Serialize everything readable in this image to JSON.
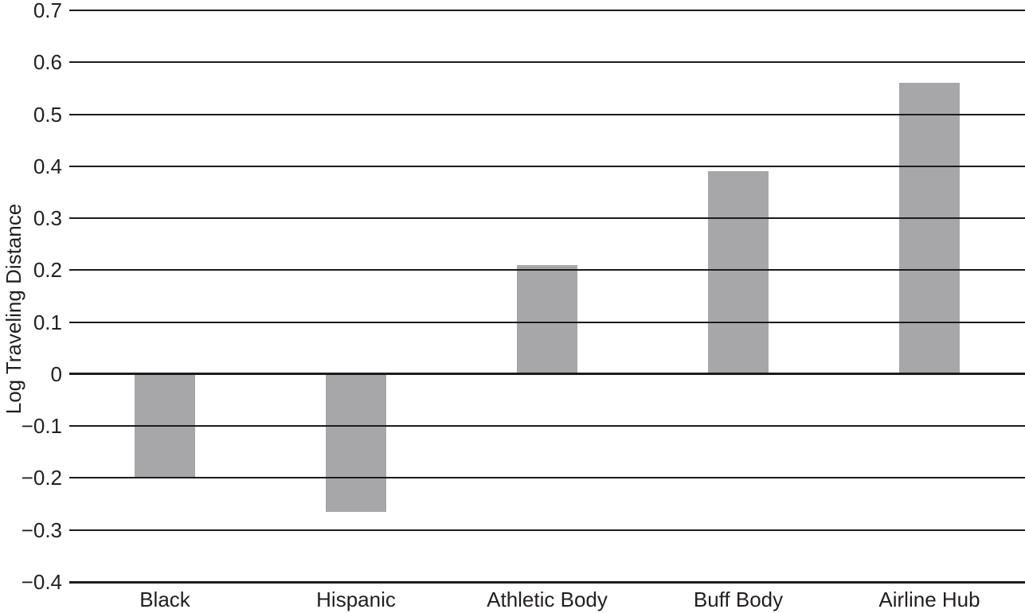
{
  "chart_data": {
    "type": "bar",
    "title": "",
    "xlabel": "",
    "ylabel": "Log Traveling Distance",
    "categories": [
      "Black",
      "Hispanic",
      "Athletic Body",
      "Buff Body",
      "Airline Hub"
    ],
    "values": [
      -0.2,
      -0.265,
      0.21,
      0.39,
      0.56
    ],
    "ylim": [
      -0.4,
      0.7
    ],
    "ytick_step": 0.1,
    "yticks": [
      0.7,
      0.6,
      0.5,
      0.4,
      0.3,
      0.2,
      0.1,
      0,
      -0.1,
      -0.2,
      -0.3,
      -0.4
    ],
    "ytick_labels": [
      "0.7",
      "0.6",
      "0.5",
      "0.4",
      "0.3",
      "0.2",
      "0.1",
      "0",
      "−0.1",
      "−0.2",
      "−0.3",
      "−0.4"
    ],
    "grid": true,
    "legend": false,
    "bar_color": "#a7a7aa",
    "grid_color": "#1c1c1e",
    "text_color": "#231f20",
    "background_color": "#ffffff"
  }
}
